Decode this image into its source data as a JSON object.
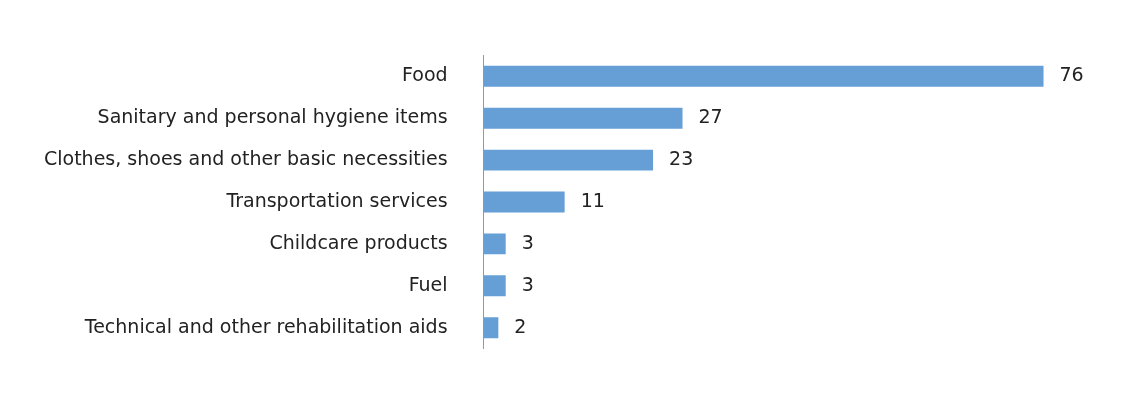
{
  "chart_data": {
    "type": "bar",
    "orientation": "horizontal",
    "categories": [
      "Food",
      "Sanitary and personal hygiene items",
      "Clothes, shoes and other basic necessities",
      "Transportation services",
      "Childcare products",
      "Fuel",
      "Technical and other rehabilitation aids"
    ],
    "values": [
      76,
      27,
      23,
      11,
      3,
      3,
      2
    ],
    "color": "#659fd6",
    "data_labels": true
  }
}
